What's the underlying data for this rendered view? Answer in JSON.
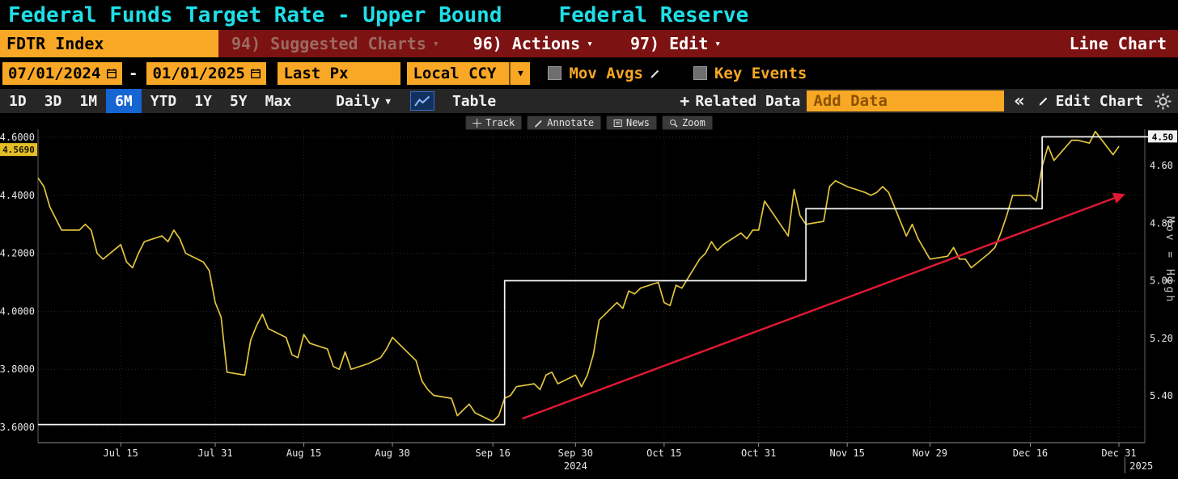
{
  "icons": {
    "dropdown_arrow": "▾",
    "dropdown_solid": "▼",
    "collapse_chevrons": "«",
    "plus": "+"
  },
  "title_bar": {
    "title": "Federal Funds Target Rate - Upper Bound",
    "subtitle": "Federal Reserve"
  },
  "menu_bar": {
    "ticker": "FDTR Index",
    "suggested_charts": "94) Suggested Charts",
    "actions": "96) Actions",
    "edit": "97) Edit",
    "chart_type": "Line Chart"
  },
  "controls": {
    "date_from": "07/01/2024",
    "date_separator": "-",
    "date_to": "01/01/2025",
    "price_field": "Last Px",
    "currency": "Local CCY",
    "mov_avgs_label": "Mov Avgs",
    "key_events_label": "Key Events"
  },
  "toolbar": {
    "ranges": [
      "1D",
      "3D",
      "1M",
      "6M",
      "YTD",
      "1Y",
      "5Y",
      "Max"
    ],
    "active_range": "6M",
    "frequency": "Daily",
    "table_label": "Table",
    "related_data_label": "Related Data",
    "add_data_placeholder": "Add Data",
    "edit_chart_label": "Edit Chart"
  },
  "chart_toolbar": {
    "track": "Track",
    "annotate": "Annotate",
    "news": "News",
    "zoom": "Zoom"
  },
  "chart": {
    "left_last_price": "4.5690",
    "right_last_price": "4.50",
    "right_edge_label": "Mov = High"
  },
  "chart_data": {
    "type": "line",
    "title": "Federal Funds Target Rate - Upper Bound",
    "x_unit": "days since 2024-07-01",
    "x_domain": [
      0,
      183
    ],
    "x_ticks": [
      {
        "label": "Jul 15",
        "day": 14
      },
      {
        "label": "Jul 31",
        "day": 30
      },
      {
        "label": "Aug 15",
        "day": 45
      },
      {
        "label": "Aug 30",
        "day": 60
      },
      {
        "label": "Sep 16",
        "day": 77
      },
      {
        "label": "Sep 30",
        "day": 91
      },
      {
        "label": "Oct 15",
        "day": 106
      },
      {
        "label": "Oct 31",
        "day": 122
      },
      {
        "label": "Nov 15",
        "day": 137
      },
      {
        "label": "Nov 29",
        "day": 151
      },
      {
        "label": "Dec 16",
        "day": 168
      },
      {
        "label": "Dec 31",
        "day": 183
      }
    ],
    "year_markers": [
      {
        "label": "2024",
        "day": 91
      },
      {
        "label": "2025",
        "day": 184,
        "divider": true
      }
    ],
    "left_axis": {
      "min": 3.55,
      "max": 4.63,
      "ticks": [
        4.6,
        4.4,
        4.2,
        4.0,
        3.8,
        3.6
      ],
      "tick_labels": [
        "4.6000",
        "4.4000",
        "4.2000",
        "4.0000",
        "3.8000",
        "3.6000"
      ]
    },
    "right_axis": {
      "inverted": true,
      "ticks": [
        4.6,
        4.8,
        5.0,
        5.2,
        5.4
      ],
      "tick_labels": [
        "4.60",
        "4.80",
        "5.00",
        "5.20",
        "5.40"
      ]
    },
    "grid": true,
    "legend": "none",
    "series": [
      {
        "name": "last-px-yellow-line",
        "axis": "left",
        "color": "#e2c53e",
        "last_value": 4.569,
        "points": [
          [
            0,
            4.46
          ],
          [
            1,
            4.43
          ],
          [
            2,
            4.36
          ],
          [
            4,
            4.28
          ],
          [
            7,
            4.28
          ],
          [
            8,
            4.3
          ],
          [
            9,
            4.28
          ],
          [
            10,
            4.2
          ],
          [
            11,
            4.18
          ],
          [
            14,
            4.23
          ],
          [
            15,
            4.17
          ],
          [
            16,
            4.15
          ],
          [
            17,
            4.2
          ],
          [
            18,
            4.24
          ],
          [
            21,
            4.26
          ],
          [
            22,
            4.24
          ],
          [
            23,
            4.28
          ],
          [
            24,
            4.25
          ],
          [
            25,
            4.2
          ],
          [
            28,
            4.17
          ],
          [
            29,
            4.14
          ],
          [
            30,
            4.03
          ],
          [
            31,
            3.98
          ],
          [
            32,
            3.79
          ],
          [
            35,
            3.78
          ],
          [
            36,
            3.9
          ],
          [
            37,
            3.95
          ],
          [
            38,
            3.99
          ],
          [
            39,
            3.94
          ],
          [
            42,
            3.91
          ],
          [
            43,
            3.85
          ],
          [
            44,
            3.84
          ],
          [
            45,
            3.92
          ],
          [
            46,
            3.89
          ],
          [
            49,
            3.87
          ],
          [
            50,
            3.81
          ],
          [
            51,
            3.8
          ],
          [
            52,
            3.86
          ],
          [
            53,
            3.8
          ],
          [
            56,
            3.82
          ],
          [
            57,
            3.83
          ],
          [
            58,
            3.84
          ],
          [
            59,
            3.87
          ],
          [
            60,
            3.91
          ],
          [
            64,
            3.83
          ],
          [
            65,
            3.76
          ],
          [
            66,
            3.73
          ],
          [
            67,
            3.71
          ],
          [
            70,
            3.7
          ],
          [
            71,
            3.64
          ],
          [
            72,
            3.66
          ],
          [
            73,
            3.68
          ],
          [
            74,
            3.65
          ],
          [
            77,
            3.62
          ],
          [
            78,
            3.64
          ],
          [
            79,
            3.7
          ],
          [
            80,
            3.71
          ],
          [
            81,
            3.74
          ],
          [
            84,
            3.75
          ],
          [
            85,
            3.73
          ],
          [
            86,
            3.78
          ],
          [
            87,
            3.79
          ],
          [
            88,
            3.75
          ],
          [
            91,
            3.78
          ],
          [
            92,
            3.74
          ],
          [
            93,
            3.78
          ],
          [
            94,
            3.85
          ],
          [
            95,
            3.97
          ],
          [
            98,
            4.03
          ],
          [
            99,
            4.01
          ],
          [
            100,
            4.07
          ],
          [
            101,
            4.06
          ],
          [
            102,
            4.08
          ],
          [
            105,
            4.1
          ],
          [
            106,
            4.03
          ],
          [
            107,
            4.02
          ],
          [
            108,
            4.09
          ],
          [
            109,
            4.08
          ],
          [
            112,
            4.18
          ],
          [
            113,
            4.2
          ],
          [
            114,
            4.24
          ],
          [
            115,
            4.21
          ],
          [
            116,
            4.23
          ],
          [
            119,
            4.27
          ],
          [
            120,
            4.25
          ],
          [
            121,
            4.28
          ],
          [
            122,
            4.28
          ],
          [
            123,
            4.38
          ],
          [
            126,
            4.29
          ],
          [
            127,
            4.26
          ],
          [
            128,
            4.42
          ],
          [
            129,
            4.33
          ],
          [
            130,
            4.3
          ],
          [
            133,
            4.31
          ],
          [
            134,
            4.43
          ],
          [
            135,
            4.45
          ],
          [
            136,
            4.44
          ],
          [
            137,
            4.43
          ],
          [
            140,
            4.41
          ],
          [
            141,
            4.4
          ],
          [
            142,
            4.41
          ],
          [
            143,
            4.43
          ],
          [
            144,
            4.41
          ],
          [
            147,
            4.26
          ],
          [
            148,
            4.3
          ],
          [
            149,
            4.25
          ],
          [
            151,
            4.18
          ],
          [
            154,
            4.19
          ],
          [
            155,
            4.22
          ],
          [
            156,
            4.18
          ],
          [
            157,
            4.18
          ],
          [
            158,
            4.15
          ],
          [
            161,
            4.2
          ],
          [
            162,
            4.22
          ],
          [
            163,
            4.27
          ],
          [
            164,
            4.33
          ],
          [
            165,
            4.4
          ],
          [
            168,
            4.4
          ],
          [
            169,
            4.38
          ],
          [
            170,
            4.5
          ],
          [
            171,
            4.57
          ],
          [
            172,
            4.52
          ],
          [
            175,
            4.59
          ],
          [
            176,
            4.59
          ],
          [
            178,
            4.58
          ],
          [
            179,
            4.62
          ],
          [
            182,
            4.54
          ],
          [
            183,
            4.569
          ]
        ]
      },
      {
        "name": "fdtr-upper-bound-step-line",
        "axis": "right",
        "color": "#f5f5f5",
        "last_value": 4.5,
        "extend_right": true,
        "points": [
          [
            0,
            5.5
          ],
          [
            79,
            5.5
          ],
          [
            79,
            5.0
          ],
          [
            130,
            5.0
          ],
          [
            130,
            4.75
          ],
          [
            170,
            4.75
          ],
          [
            170,
            4.5
          ],
          [
            183,
            4.5
          ]
        ]
      }
    ],
    "annotations": [
      {
        "type": "trendline",
        "axis": "left",
        "color": "#e01933",
        "from": [
          82,
          3.63
        ],
        "to": [
          183.5,
          4.4
        ],
        "arrow": true
      }
    ]
  }
}
